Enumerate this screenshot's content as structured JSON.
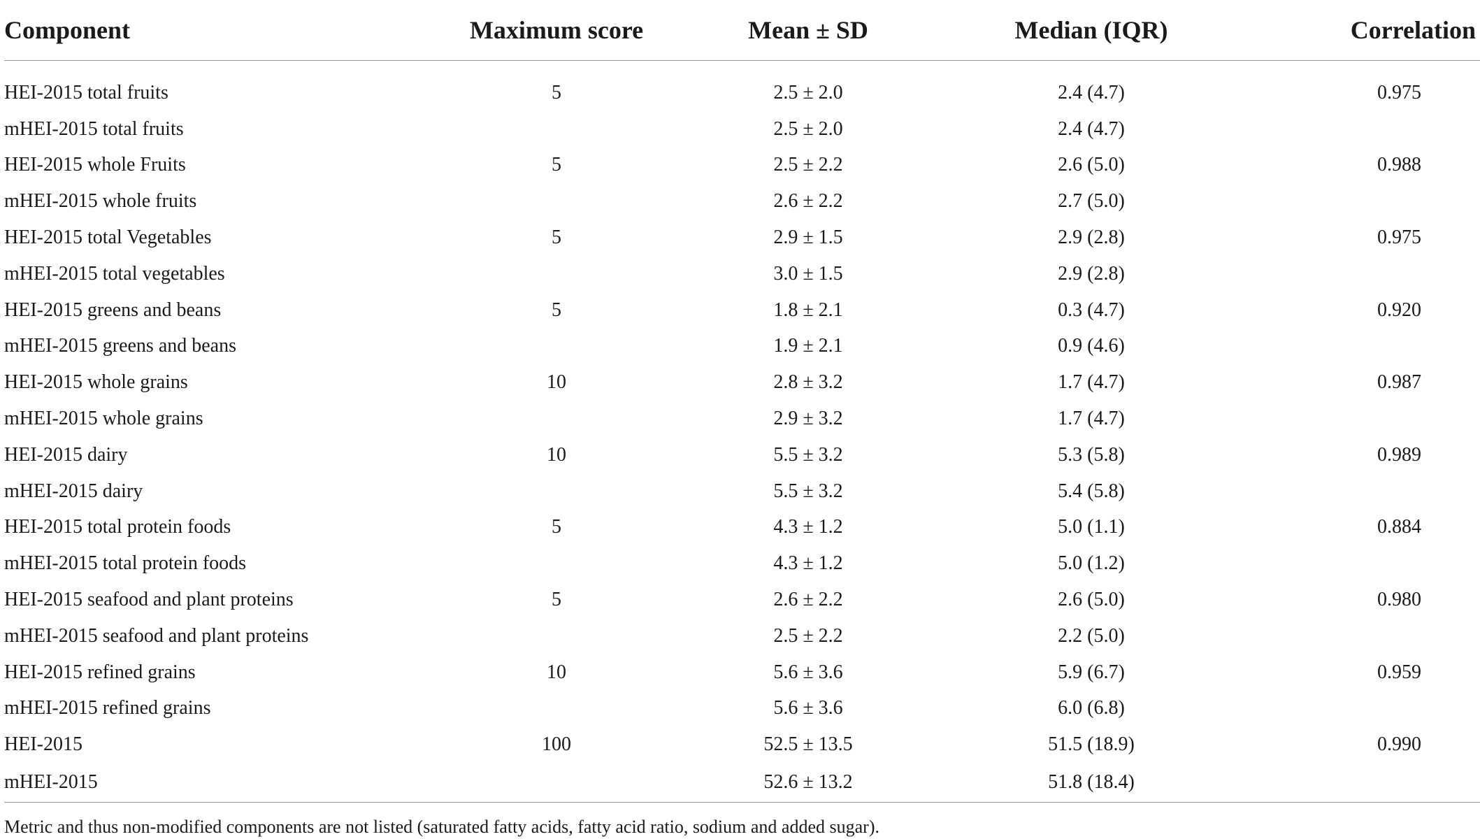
{
  "table": {
    "headers": [
      "Component",
      "Maximum score",
      "Mean ± SD",
      "Median (IQR)",
      "Correlation"
    ],
    "rows": [
      [
        "HEI-2015 total fruits",
        "5",
        "2.5 ± 2.0",
        "2.4 (4.7)",
        "0.975"
      ],
      [
        "mHEI-2015 total fruits",
        "",
        "2.5 ± 2.0",
        "2.4 (4.7)",
        ""
      ],
      [
        "HEI-2015 whole Fruits",
        "5",
        "2.5 ± 2.2",
        "2.6 (5.0)",
        "0.988"
      ],
      [
        "mHEI-2015 whole fruits",
        "",
        "2.6 ± 2.2",
        "2.7 (5.0)",
        ""
      ],
      [
        "HEI-2015 total Vegetables",
        "5",
        "2.9 ± 1.5",
        "2.9 (2.8)",
        "0.975"
      ],
      [
        "mHEI-2015 total vegetables",
        "",
        "3.0 ± 1.5",
        "2.9 (2.8)",
        ""
      ],
      [
        "HEI-2015 greens and beans",
        "5",
        "1.8 ± 2.1",
        "0.3 (4.7)",
        "0.920"
      ],
      [
        "mHEI-2015 greens and beans",
        "",
        "1.9 ± 2.1",
        "0.9 (4.6)",
        ""
      ],
      [
        "HEI-2015 whole grains",
        "10",
        "2.8 ± 3.2",
        "1.7 (4.7)",
        "0.987"
      ],
      [
        "mHEI-2015 whole grains",
        "",
        "2.9 ± 3.2",
        "1.7 (4.7)",
        ""
      ],
      [
        "HEI-2015 dairy",
        "10",
        "5.5 ± 3.2",
        "5.3 (5.8)",
        "0.989"
      ],
      [
        "mHEI-2015 dairy",
        "",
        "5.5 ± 3.2",
        "5.4 (5.8)",
        ""
      ],
      [
        "HEI-2015 total protein foods",
        "5",
        "4.3 ± 1.2",
        "5.0 (1.1)",
        "0.884"
      ],
      [
        "mHEI-2015 total protein foods",
        "",
        "4.3 ± 1.2",
        "5.0 (1.2)",
        ""
      ],
      [
        "HEI-2015 seafood and plant proteins",
        "5",
        "2.6 ± 2.2",
        "2.6 (5.0)",
        "0.980"
      ],
      [
        "mHEI-2015 seafood and plant proteins",
        "",
        "2.5 ± 2.2",
        "2.2 (5.0)",
        ""
      ],
      [
        "HEI-2015 refined grains",
        "10",
        "5.6 ± 3.6",
        "5.9 (6.7)",
        "0.959"
      ],
      [
        "mHEI-2015 refined grains",
        "",
        "5.6 ± 3.6",
        "6.0 (6.8)",
        ""
      ],
      [
        "HEI-2015",
        "100",
        "52.5 ± 13.5",
        "51.5 (18.9)",
        "0.990"
      ],
      [
        "mHEI-2015",
        "",
        "52.6 ± 13.2",
        "51.8 (18.4)",
        ""
      ]
    ],
    "footnote": "Metric and thus non-modified components are not listed (saturated fatty acids, fatty acid ratio, sodium and added sugar)."
  }
}
